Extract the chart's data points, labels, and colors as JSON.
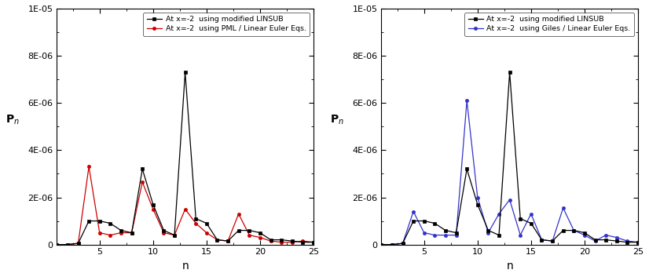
{
  "left": {
    "xlabel": "n",
    "xlim": [
      1,
      25
    ],
    "ylim": [
      0,
      1e-05
    ],
    "yticks": [
      0,
      2e-06,
      4e-06,
      6e-06,
      8e-06,
      1e-05
    ],
    "ytick_labels": [
      "0",
      "2E-06",
      "4E-06",
      "6E-06",
      "8E-06",
      "1E-05"
    ],
    "xticks": [
      5,
      10,
      15,
      20,
      25
    ],
    "black_x": [
      1,
      2,
      3,
      4,
      5,
      6,
      7,
      8,
      9,
      10,
      11,
      12,
      13,
      14,
      15,
      16,
      17,
      18,
      19,
      20,
      21,
      22,
      23,
      24,
      25
    ],
    "black_y": [
      0.0,
      0.0,
      5e-08,
      1e-06,
      1e-06,
      9e-07,
      6e-07,
      5e-07,
      3.2e-06,
      1.7e-06,
      6e-07,
      4e-07,
      7.3e-06,
      1.1e-06,
      9e-07,
      2e-07,
      1.5e-07,
      6e-07,
      6e-07,
      5e-07,
      2e-07,
      2e-07,
      1.5e-07,
      1e-07,
      1e-07
    ],
    "red_x": [
      1,
      2,
      3,
      4,
      5,
      6,
      7,
      8,
      9,
      10,
      11,
      12,
      13,
      14,
      15,
      16,
      17,
      18,
      19,
      20,
      21,
      22,
      23,
      24,
      25
    ],
    "red_y": [
      0.0,
      0.0,
      5e-08,
      3.3e-06,
      5e-07,
      4e-07,
      5e-07,
      5e-07,
      2.65e-06,
      1.5e-06,
      5e-07,
      4e-07,
      1.5e-06,
      9e-07,
      5e-07,
      2e-07,
      1.5e-07,
      1.3e-06,
      4e-07,
      3e-07,
      1.5e-07,
      1e-07,
      1e-07,
      1.5e-07,
      1e-07
    ],
    "black_label": "At x=-2  using modified LINSUB",
    "red_label": "At x=-2  using PML / Linear Euler Eqs.",
    "black_color": "#000000",
    "red_color": "#cc0000"
  },
  "right": {
    "xlabel": "n",
    "xlim": [
      1,
      25
    ],
    "ylim": [
      0,
      1e-05
    ],
    "yticks": [
      0,
      2e-06,
      4e-06,
      6e-06,
      8e-06,
      1e-05
    ],
    "ytick_labels": [
      "0",
      "2E-06",
      "4E-06",
      "6E-06",
      "8E-06",
      "1E-05"
    ],
    "xticks": [
      5,
      10,
      15,
      20,
      25
    ],
    "black_x": [
      1,
      2,
      3,
      4,
      5,
      6,
      7,
      8,
      9,
      10,
      11,
      12,
      13,
      14,
      15,
      16,
      17,
      18,
      19,
      20,
      21,
      22,
      23,
      24,
      25
    ],
    "black_y": [
      0.0,
      0.0,
      5e-08,
      1e-06,
      1e-06,
      9e-07,
      6e-07,
      5e-07,
      3.2e-06,
      1.7e-06,
      6e-07,
      4e-07,
      7.3e-06,
      1.1e-06,
      9e-07,
      2e-07,
      1.5e-07,
      6e-07,
      6e-07,
      5e-07,
      2e-07,
      2e-07,
      1.5e-07,
      1e-07,
      1e-07
    ],
    "blue_x": [
      1,
      2,
      3,
      4,
      5,
      6,
      7,
      8,
      9,
      10,
      11,
      12,
      13,
      14,
      15,
      16,
      17,
      18,
      19,
      20,
      21,
      22,
      23,
      24,
      25
    ],
    "blue_y": [
      0.0,
      0.0,
      5e-08,
      1.4e-06,
      5e-07,
      4e-07,
      4e-07,
      4e-07,
      6.1e-06,
      2e-06,
      5e-07,
      1.3e-06,
      1.9e-06,
      4e-07,
      1.3e-06,
      2e-07,
      1.5e-07,
      1.55e-06,
      6e-07,
      4e-07,
      1.5e-07,
      4e-07,
      3e-07,
      1.5e-07,
      1e-07
    ],
    "black_label": "At x=-2  using modified LINSUB",
    "blue_label": "At x=-2  using Giles / Linear Euler Eqs.",
    "black_color": "#000000",
    "blue_color": "#3333cc"
  },
  "figure_background": "#ffffff",
  "axes_background": "#ffffff"
}
